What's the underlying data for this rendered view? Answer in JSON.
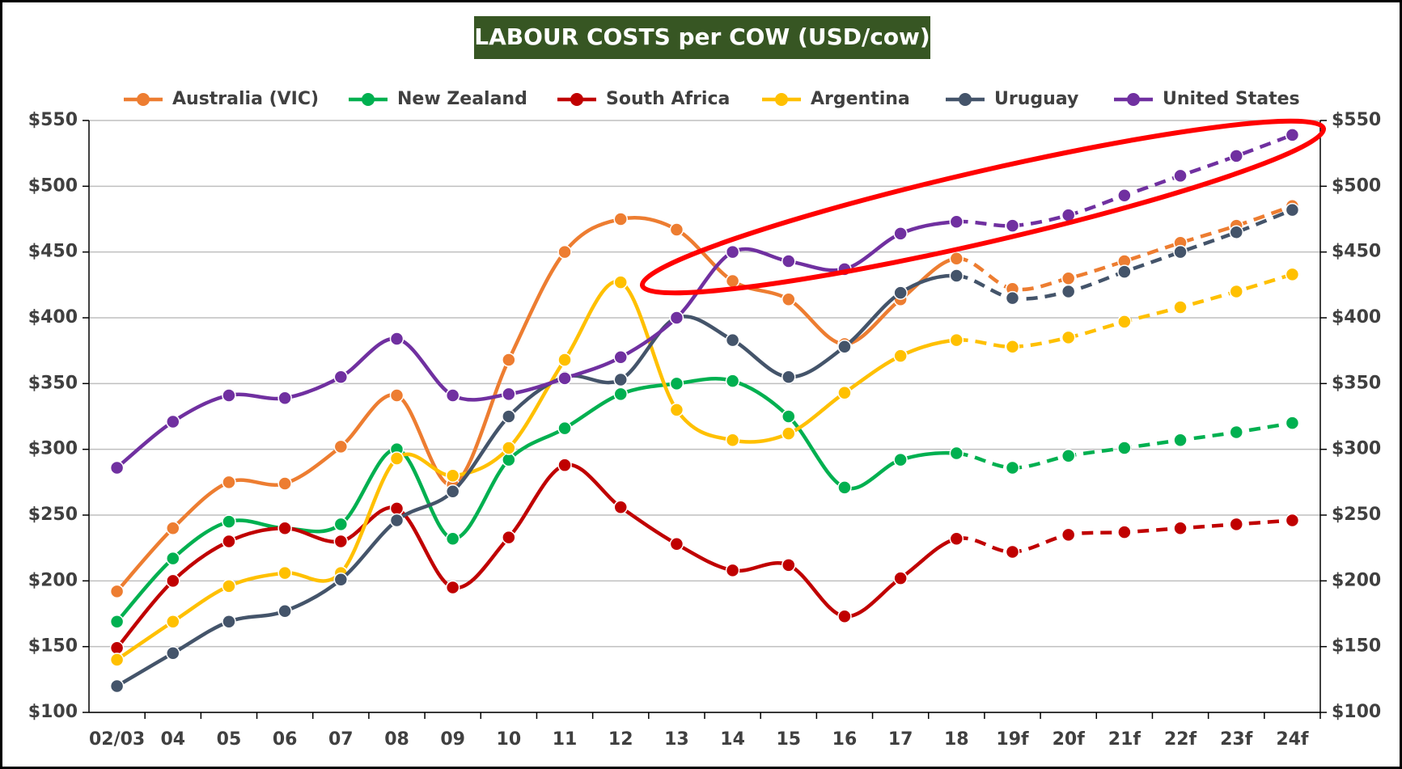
{
  "chart_data": {
    "type": "line",
    "title": "LABOUR COSTS per COW (USD/cow)",
    "categories": [
      "02/03",
      "04",
      "05",
      "06",
      "07",
      "08",
      "09",
      "10",
      "11",
      "12",
      "13",
      "14",
      "15",
      "16",
      "17",
      "18",
      "19f",
      "20f",
      "21f",
      "22f",
      "23f",
      "24f"
    ],
    "series": [
      {
        "name": "Australia (VIC)",
        "color": "#ED7D31",
        "values": [
          192,
          240,
          275,
          274,
          302,
          341,
          273,
          368,
          450,
          475,
          467,
          428,
          414,
          380,
          414,
          445,
          422,
          430,
          443,
          457,
          470,
          485
        ]
      },
      {
        "name": "New Zealand",
        "color": "#00B050",
        "values": [
          169,
          217,
          245,
          240,
          243,
          300,
          232,
          292,
          316,
          342,
          350,
          352,
          325,
          271,
          292,
          297,
          286,
          295,
          301,
          307,
          313,
          320
        ]
      },
      {
        "name": "South Africa",
        "color": "#C00000",
        "values": [
          149,
          200,
          230,
          240,
          230,
          255,
          195,
          233,
          288,
          256,
          228,
          208,
          212,
          173,
          202,
          232,
          222,
          235,
          237,
          240,
          243,
          246
        ]
      },
      {
        "name": "Argentina",
        "color": "#FFC000",
        "values": [
          140,
          169,
          196,
          206,
          206,
          293,
          280,
          301,
          368,
          427,
          330,
          307,
          312,
          343,
          371,
          383,
          378,
          385,
          397,
          408,
          420,
          433
        ]
      },
      {
        "name": "Uruguay",
        "color": "#44546A",
        "values": [
          120,
          145,
          169,
          177,
          201,
          246,
          268,
          325,
          355,
          353,
          400,
          383,
          355,
          378,
          419,
          432,
          415,
          420,
          435,
          450,
          465,
          482
        ]
      },
      {
        "name": "United States",
        "color": "#7030A0",
        "values": [
          286,
          321,
          341,
          339,
          355,
          384,
          341,
          342,
          354,
          370,
          400,
          450,
          443,
          437,
          464,
          473,
          470,
          478,
          493,
          508,
          523,
          539
        ]
      }
    ],
    "ylim": [
      100,
      550
    ],
    "yticks": [
      {
        "value": 100,
        "label": "$100"
      },
      {
        "value": 150,
        "label": "$150"
      },
      {
        "value": 200,
        "label": "$200"
      },
      {
        "value": 250,
        "label": "$250"
      },
      {
        "value": 300,
        "label": "$300"
      },
      {
        "value": 350,
        "label": "$350"
      },
      {
        "value": 400,
        "label": "$400"
      },
      {
        "value": 450,
        "label": "$450"
      },
      {
        "value": 500,
        "label": "$500"
      },
      {
        "value": 550,
        "label": "$550"
      }
    ],
    "grid": true,
    "legend": "top"
  }
}
